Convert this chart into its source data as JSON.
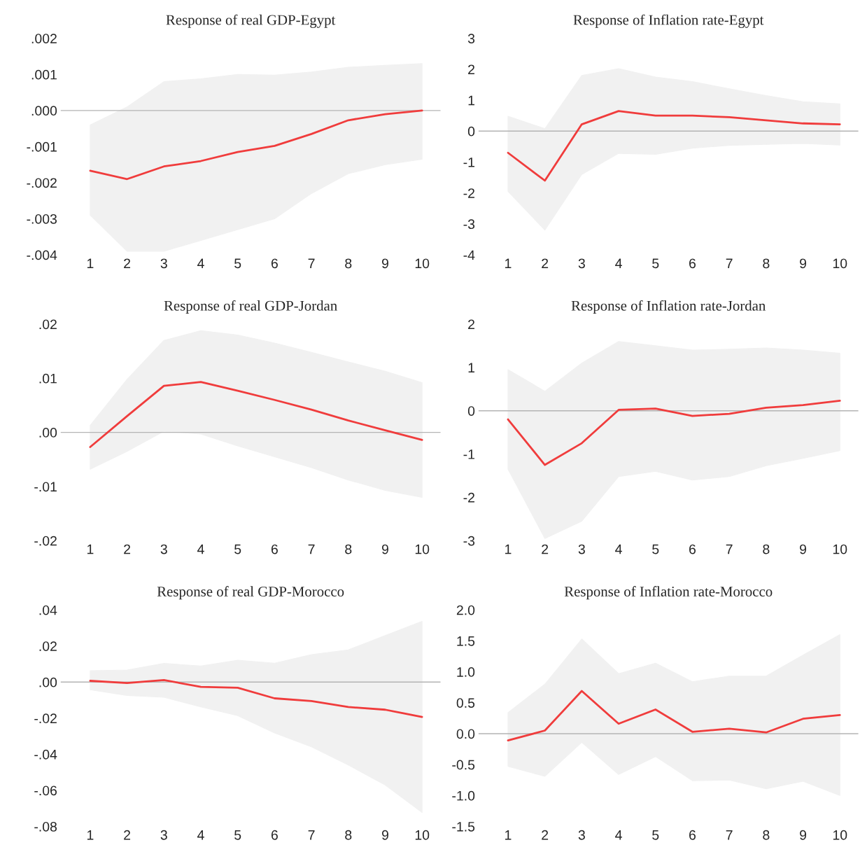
{
  "chart_data": [
    {
      "type": "line",
      "title": "Response of real GDP-Egypt",
      "categories": [
        "1",
        "2",
        "3",
        "4",
        "5",
        "6",
        "7",
        "8",
        "9",
        "10"
      ],
      "ylim": [
        -0.004,
        0.002
      ],
      "yticks": [
        {
          "value": -0.004,
          "label": "-.004"
        },
        {
          "value": -0.003,
          "label": "-.003"
        },
        {
          "value": -0.002,
          "label": "-.002"
        },
        {
          "value": -0.001,
          "label": "-.001"
        },
        {
          "value": 0,
          "label": ".000"
        },
        {
          "value": 0.001,
          "label": ".001"
        },
        {
          "value": 0.002,
          "label": ".002"
        }
      ],
      "grid": false,
      "ref_lines": [
        {
          "axis": "y",
          "value": 0,
          "color": "#b4b4b4"
        }
      ],
      "series": [
        {
          "color": "#f03c3c",
          "values": [
            -0.00167,
            -0.0019,
            -0.00155,
            -0.0014,
            -0.00115,
            -0.00098,
            -0.00065,
            -0.00027,
            -0.0001,
            0.0
          ],
          "upper": [
            -0.0004,
            0.0001,
            0.0008,
            0.00088,
            0.001,
            0.00098,
            0.00107,
            0.0012,
            0.00125,
            0.0013
          ],
          "lower": [
            -0.0029,
            -0.0039,
            -0.0039,
            -0.0036,
            -0.0033,
            -0.003,
            -0.0023,
            -0.00175,
            -0.0015,
            -0.00135
          ]
        }
      ]
    },
    {
      "type": "line",
      "title": "Response of Inflation rate-Egypt",
      "categories": [
        "1",
        "2",
        "3",
        "4",
        "5",
        "6",
        "7",
        "8",
        "9",
        "10"
      ],
      "ylim": [
        -4,
        3
      ],
      "yticks": [
        -4,
        -3,
        -2,
        -1,
        0,
        1,
        2,
        3
      ],
      "grid": false,
      "ref_lines": [
        {
          "axis": "y",
          "value": 0,
          "color": "#b4b4b4"
        }
      ],
      "series": [
        {
          "color": "#f03c3c",
          "values": [
            -0.7,
            -1.6,
            0.22,
            0.65,
            0.5,
            0.5,
            0.45,
            0.35,
            0.25,
            0.22
          ],
          "upper": [
            0.48,
            0.08,
            1.8,
            2.02,
            1.75,
            1.6,
            1.37,
            1.15,
            0.95,
            0.88
          ],
          "lower": [
            -1.95,
            -3.2,
            -1.4,
            -0.72,
            -0.75,
            -0.55,
            -0.46,
            -0.43,
            -0.4,
            -0.45
          ]
        }
      ]
    },
    {
      "type": "line",
      "title": "Response of real GDP-Jordan",
      "categories": [
        "1",
        "2",
        "3",
        "4",
        "5",
        "6",
        "7",
        "8",
        "9",
        "10"
      ],
      "ylim": [
        -0.02,
        0.02
      ],
      "yticks": [
        {
          "value": -0.02,
          "label": "-.02"
        },
        {
          "value": -0.01,
          "label": "-.01"
        },
        {
          "value": 0,
          "label": ".00"
        },
        {
          "value": 0.01,
          "label": ".01"
        },
        {
          "value": 0.02,
          "label": ".02"
        }
      ],
      "grid": false,
      "ref_lines": [
        {
          "axis": "y",
          "value": 0,
          "color": "#b4b4b4"
        }
      ],
      "series": [
        {
          "color": "#f03c3c",
          "values": [
            -0.0027,
            0.003,
            0.0086,
            0.0093,
            0.0077,
            0.006,
            0.0042,
            0.0022,
            0.0004,
            -0.0014
          ],
          "upper": [
            0.0013,
            0.0098,
            0.017,
            0.0188,
            0.018,
            0.0165,
            0.0148,
            0.013,
            0.0113,
            0.0092
          ],
          "lower": [
            -0.0068,
            -0.0035,
            0.0002,
            -0.0003,
            -0.0025,
            -0.0045,
            -0.0065,
            -0.0088,
            -0.0107,
            -0.012
          ]
        }
      ]
    },
    {
      "type": "line",
      "title": "Response of Inflation rate-Jordan",
      "categories": [
        "1",
        "2",
        "3",
        "4",
        "5",
        "6",
        "7",
        "8",
        "9",
        "10"
      ],
      "ylim": [
        -3,
        2
      ],
      "yticks": [
        -3,
        -2,
        -1,
        0,
        1,
        2
      ],
      "grid": false,
      "ref_lines": [
        {
          "axis": "y",
          "value": 0,
          "color": "#b4b4b4"
        }
      ],
      "series": [
        {
          "color": "#f03c3c",
          "values": [
            -0.2,
            -1.25,
            -0.75,
            0.02,
            0.05,
            -0.12,
            -0.07,
            0.07,
            0.13,
            0.23
          ],
          "upper": [
            0.95,
            0.45,
            1.1,
            1.6,
            1.5,
            1.4,
            1.42,
            1.45,
            1.4,
            1.33
          ],
          "lower": [
            -1.35,
            -2.95,
            -2.55,
            -1.52,
            -1.4,
            -1.6,
            -1.52,
            -1.27,
            -1.1,
            -0.92
          ]
        }
      ]
    },
    {
      "type": "line",
      "title": "Response of real GDP-Morocco",
      "categories": [
        "1",
        "2",
        "3",
        "4",
        "5",
        "6",
        "7",
        "8",
        "9",
        "10"
      ],
      "ylim": [
        -0.08,
        0.04
      ],
      "yticks": [
        {
          "value": -0.08,
          "label": "-.08"
        },
        {
          "value": -0.06,
          "label": "-.06"
        },
        {
          "value": -0.04,
          "label": "-.04"
        },
        {
          "value": -0.02,
          "label": "-.02"
        },
        {
          "value": 0,
          "label": ".00"
        },
        {
          "value": 0.02,
          "label": ".02"
        },
        {
          "value": 0.04,
          "label": ".04"
        }
      ],
      "grid": false,
      "ref_lines": [
        {
          "axis": "y",
          "value": 0,
          "color": "#b4b4b4"
        }
      ],
      "series": [
        {
          "color": "#f03c3c",
          "values": [
            0.0007,
            -0.0005,
            0.0011,
            -0.0026,
            -0.0031,
            -0.009,
            -0.0105,
            -0.0138,
            -0.0153,
            -0.0193
          ],
          "upper": [
            0.0063,
            0.0067,
            0.0104,
            0.0089,
            0.0121,
            0.0105,
            0.0152,
            0.0179,
            0.0258,
            0.0337
          ],
          "lower": [
            -0.0042,
            -0.0074,
            -0.0084,
            -0.0137,
            -0.0186,
            -0.0282,
            -0.0359,
            -0.046,
            -0.057,
            -0.0723
          ]
        }
      ]
    },
    {
      "type": "line",
      "title": "Response of Inflation rate-Morocco",
      "categories": [
        "1",
        "2",
        "3",
        "4",
        "5",
        "6",
        "7",
        "8",
        "9",
        "10"
      ],
      "ylim": [
        -1.5,
        2.0
      ],
      "yticks": [
        {
          "value": -1.5,
          "label": "-1.5"
        },
        {
          "value": -1.0,
          "label": "-1.0"
        },
        {
          "value": -0.5,
          "label": "-0.5"
        },
        {
          "value": 0,
          "label": "0.0"
        },
        {
          "value": 0.5,
          "label": "0.5"
        },
        {
          "value": 1.0,
          "label": "1.0"
        },
        {
          "value": 1.5,
          "label": "1.5"
        },
        {
          "value": 2.0,
          "label": "2.0"
        }
      ],
      "grid": false,
      "ref_lines": [
        {
          "axis": "y",
          "value": 0,
          "color": "#b4b4b4"
        }
      ],
      "series": [
        {
          "color": "#f03c3c",
          "values": [
            -0.11,
            0.05,
            0.69,
            0.16,
            0.39,
            0.03,
            0.08,
            0.02,
            0.24,
            0.3
          ],
          "upper": [
            0.34,
            0.8,
            1.53,
            0.97,
            1.14,
            0.84,
            0.93,
            0.93,
            1.27,
            1.6
          ],
          "lower": [
            -0.53,
            -0.69,
            -0.14,
            -0.66,
            -0.37,
            -0.76,
            -0.75,
            -0.89,
            -0.77,
            -1.0
          ]
        }
      ]
    }
  ]
}
